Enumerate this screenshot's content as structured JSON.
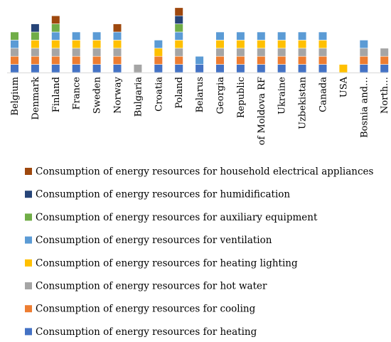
{
  "chart_data": {
    "type": "bar",
    "stacked": true,
    "grid": false,
    "legend_position": "bottom",
    "title": "",
    "xlabel": "",
    "ylabel": "",
    "ylim": [
      0,
      8
    ],
    "categories": [
      "Belgium",
      "Denmark",
      "Finland",
      "France",
      "Sweden",
      "Norway",
      "Bulgaria",
      "Croatia",
      "Poland",
      "Belarus",
      "Georgia",
      "Republic",
      "of Moldova RF",
      "Ukraine",
      "Uzbekistan",
      "Canada",
      "USA",
      "Bosnia and…",
      "North…"
    ],
    "series": [
      {
        "name": "Consumption of energy resources for heating",
        "color": "#4472C4",
        "values": [
          1,
          1,
          1,
          1,
          1,
          1,
          0,
          1,
          1,
          1,
          1,
          1,
          1,
          1,
          1,
          1,
          0,
          1,
          1
        ]
      },
      {
        "name": "Consumption of energy resources for cooling",
        "color": "#ED7D31",
        "values": [
          1,
          1,
          1,
          1,
          1,
          1,
          0,
          1,
          1,
          0,
          1,
          1,
          1,
          1,
          1,
          1,
          0,
          1,
          1
        ]
      },
      {
        "name": "Consumption of energy resources for hot water",
        "color": "#A5A5A5",
        "values": [
          1,
          1,
          1,
          1,
          1,
          1,
          1,
          0,
          1,
          0,
          1,
          1,
          1,
          1,
          1,
          1,
          0,
          1,
          1
        ]
      },
      {
        "name": "Consumption of energy resources for heating lighting",
        "color": "#FFC000",
        "values": [
          0,
          1,
          1,
          1,
          1,
          1,
          0,
          1,
          1,
          0,
          1,
          1,
          1,
          1,
          1,
          1,
          1,
          0,
          0
        ]
      },
      {
        "name": "Consumption of energy resources for ventilation",
        "color": "#5B9BD5",
        "values": [
          1,
          0,
          1,
          1,
          1,
          1,
          0,
          1,
          1,
          1,
          1,
          1,
          1,
          1,
          1,
          1,
          0,
          1,
          0
        ]
      },
      {
        "name": "Consumption of energy resources for auxiliary equipment",
        "color": "#70AD47",
        "values": [
          1,
          1,
          1,
          0,
          0,
          0,
          0,
          0,
          1,
          0,
          0,
          0,
          0,
          0,
          0,
          0,
          0,
          0,
          0
        ]
      },
      {
        "name": "Consumption of energy resources for humidification",
        "color": "#264478",
        "values": [
          0,
          1,
          0,
          0,
          0,
          0,
          0,
          0,
          1,
          0,
          0,
          0,
          0,
          0,
          0,
          0,
          0,
          0,
          0
        ]
      },
      {
        "name": "Consumption of energy resources for household electrical appliances",
        "color": "#9E480E",
        "values": [
          0,
          0,
          1,
          0,
          0,
          1,
          0,
          0,
          1,
          0,
          0,
          0,
          0,
          0,
          0,
          0,
          0,
          0,
          0
        ]
      }
    ]
  }
}
